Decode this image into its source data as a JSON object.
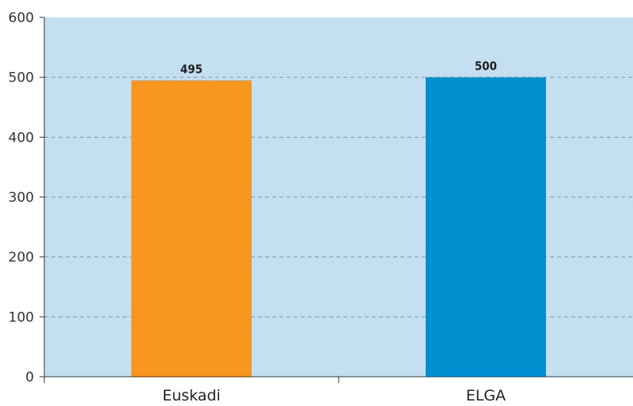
{
  "chart_data": {
    "type": "bar",
    "title": "",
    "xlabel": "",
    "ylabel": "",
    "categories": [
      "Euskadi",
      "ELGA"
    ],
    "values": [
      495,
      500
    ],
    "data_labels": [
      "495",
      "500"
    ],
    "ylim": [
      0,
      600
    ],
    "yticks": [
      0,
      100,
      200,
      300,
      400,
      500,
      600
    ],
    "ytick_labels": [
      "0",
      "100",
      "200",
      "300",
      "400",
      "500",
      "600"
    ],
    "grid": true,
    "legend": "none",
    "colors": {
      "plot_background": "#c3dff0",
      "bars": [
        "#f7961e",
        "#008fcf"
      ],
      "gridline": "#7a9db3",
      "axis": "#333333"
    }
  }
}
